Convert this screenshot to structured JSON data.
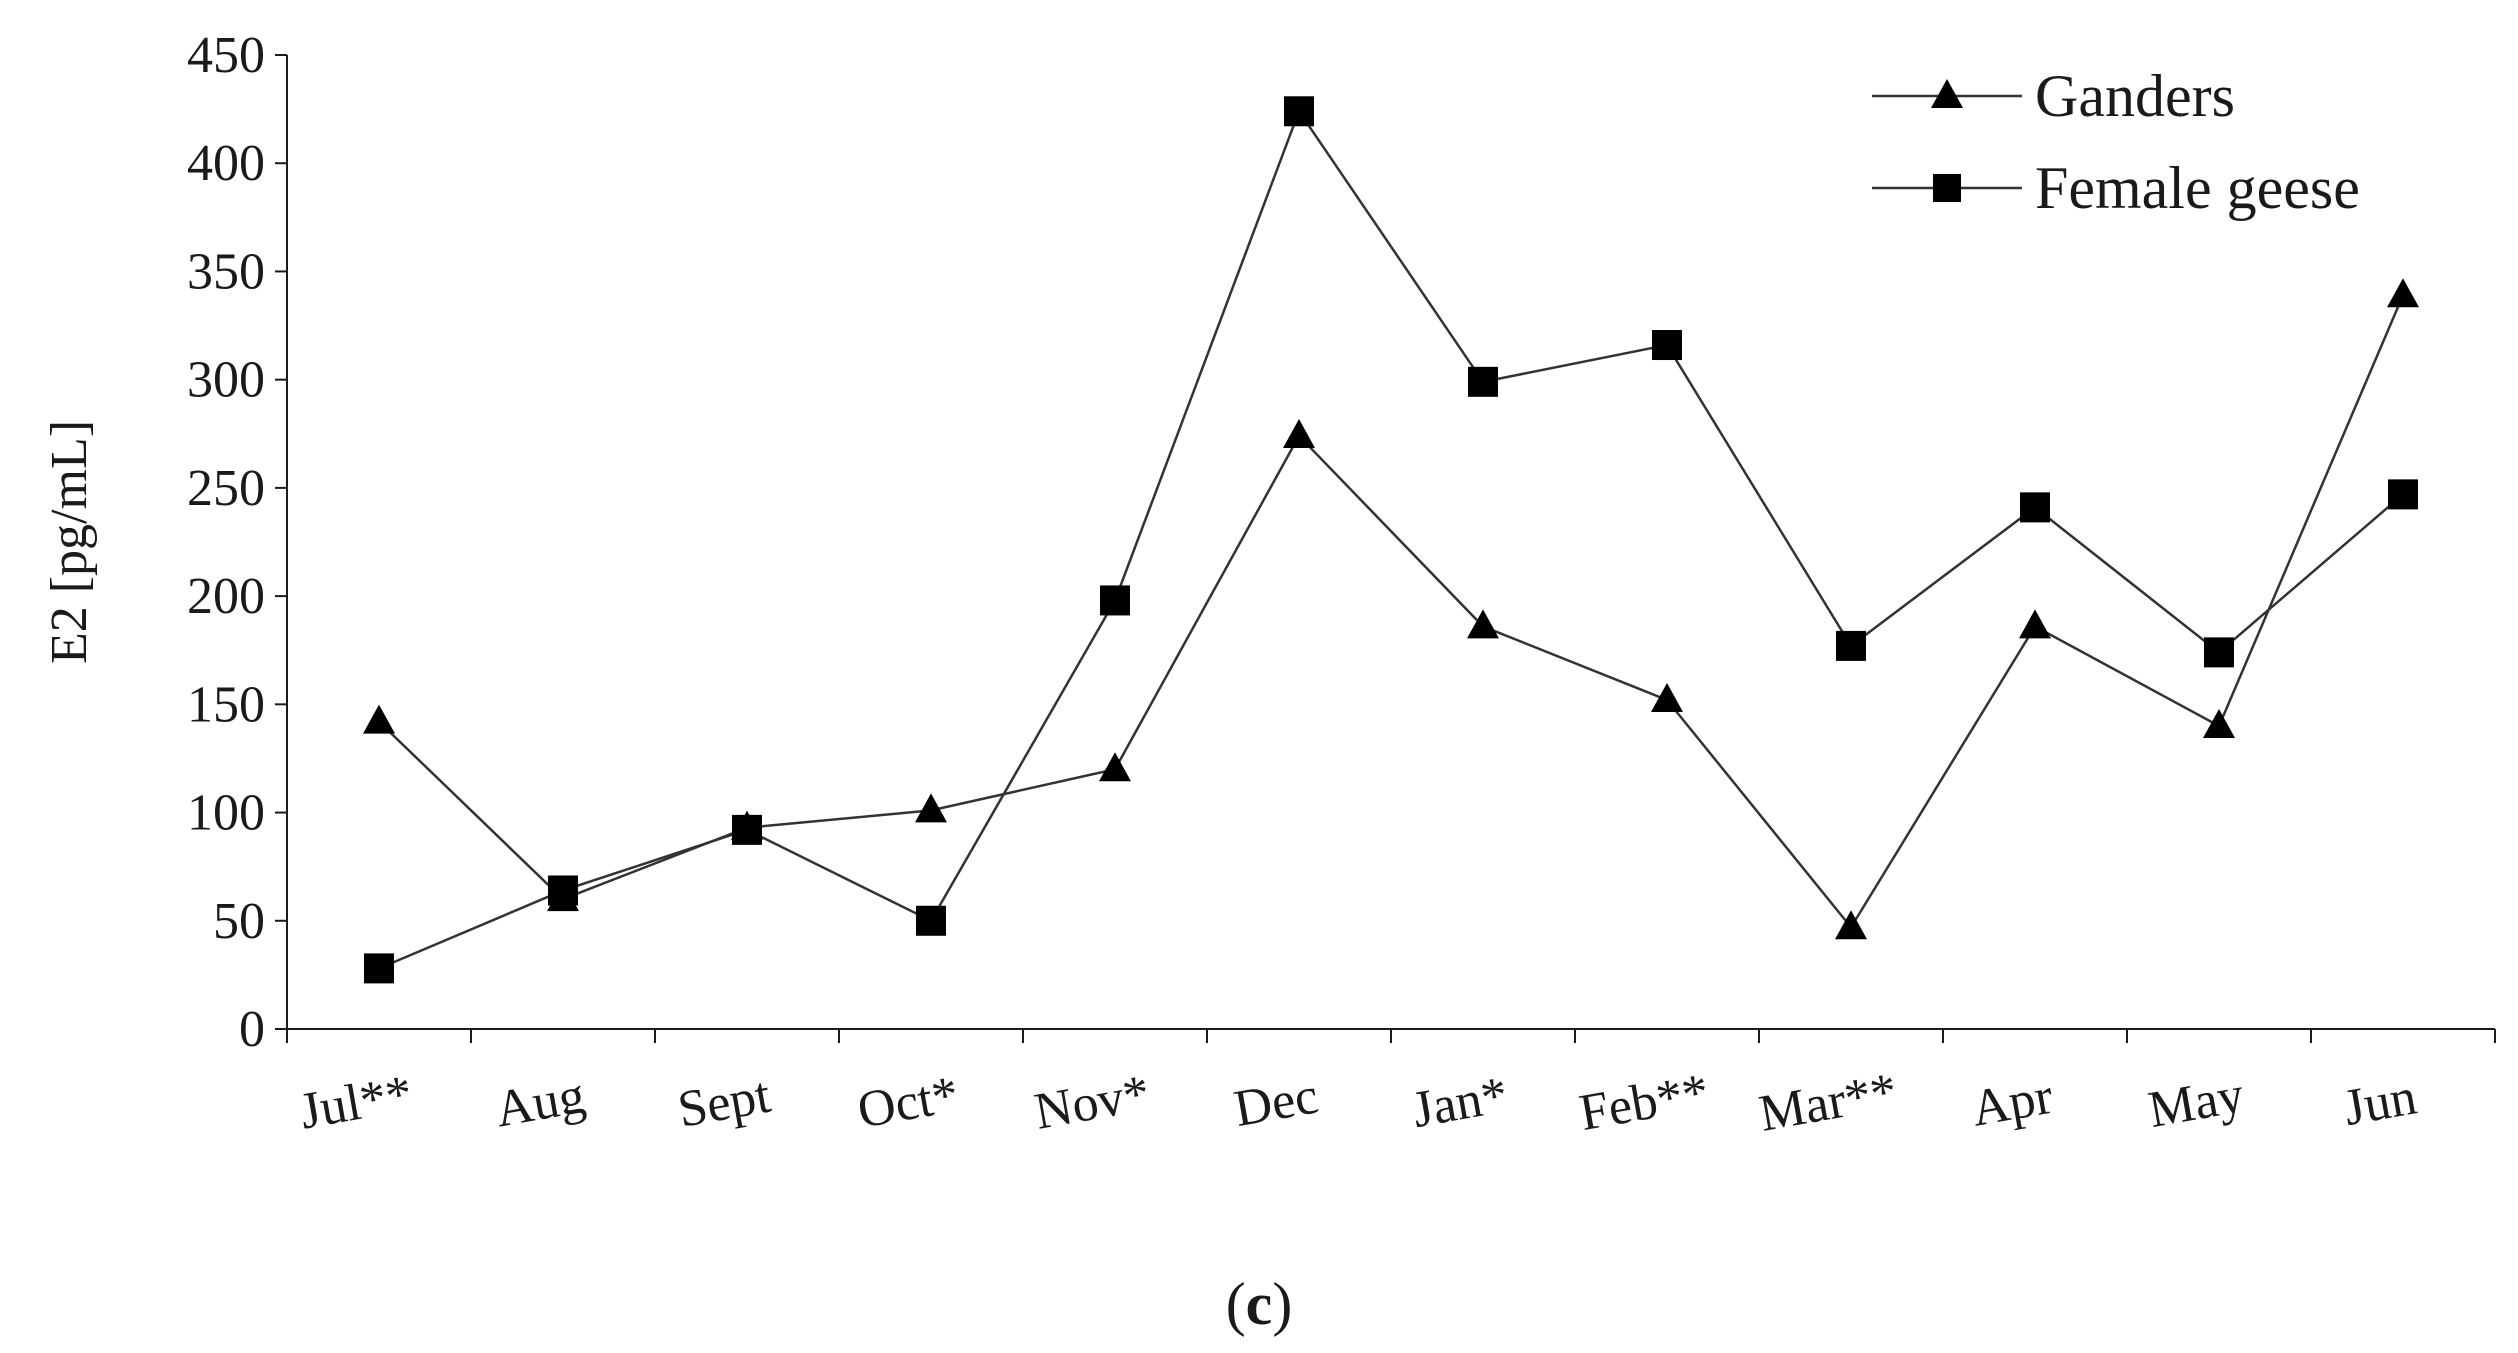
{
  "chart_data": {
    "type": "line",
    "categories": [
      "Jul**",
      "Aug",
      "Sept",
      "Oct*",
      "Nov*",
      "Dec",
      "Jan*",
      "Feb**",
      "Mar**",
      "Apr",
      "May",
      "Jun"
    ],
    "series": [
      {
        "name": "Ganders",
        "marker": "triangle",
        "values": [
          142,
          60,
          93,
          101,
          120,
          274,
          186,
          152,
          47,
          186,
          140,
          339
        ]
      },
      {
        "name": "Female geese",
        "marker": "square",
        "values": [
          28,
          64,
          92,
          50,
          198,
          424,
          299,
          316,
          177,
          241,
          174,
          247
        ]
      }
    ],
    "ylabel": "E2 [pg/mL]",
    "xlabel": "",
    "ylim": [
      0,
      450
    ],
    "yticks": [
      0,
      50,
      100,
      150,
      200,
      250,
      300,
      350,
      400,
      450
    ],
    "grid": false,
    "legend_position": "top-right",
    "line_color": "#333333",
    "marker_color": "#000000"
  },
  "panel_label": {
    "open": "(",
    "letter": "c",
    "close": ")"
  }
}
